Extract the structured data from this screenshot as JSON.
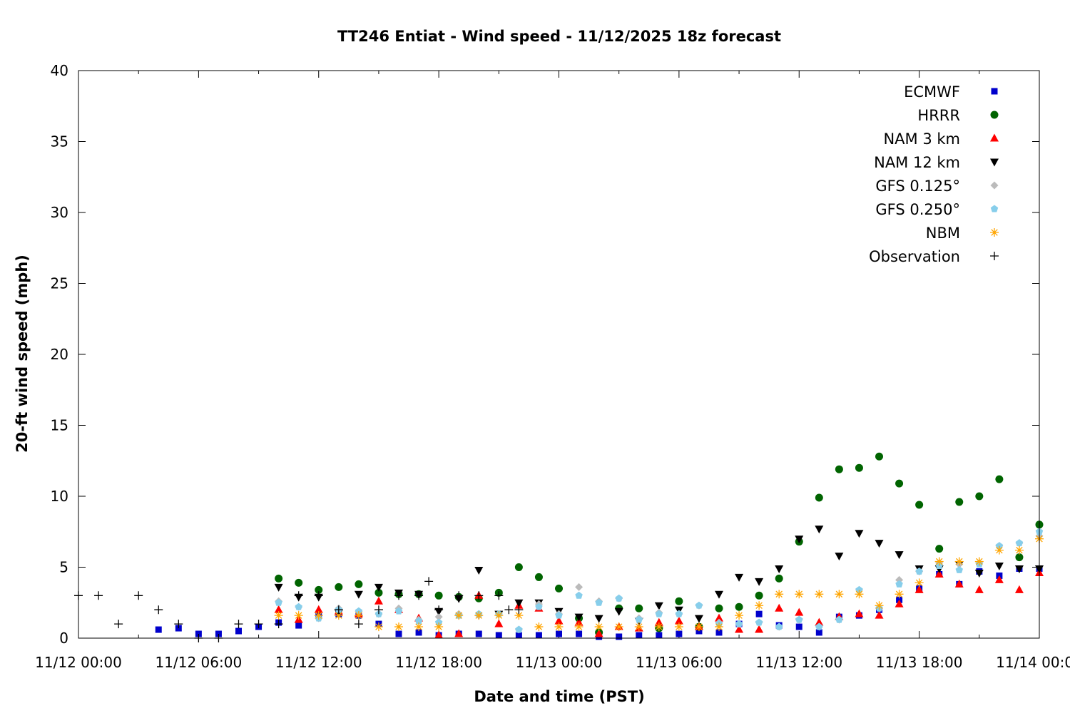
{
  "chart_data": {
    "type": "scatter",
    "title": "TT246 Entiat - Wind speed - 11/12/2025 18z forecast",
    "xlabel": "Date and time (PST)",
    "ylabel": "20-ft wind speed (mph)",
    "x_unit": "hours",
    "xlim": [
      0,
      48
    ],
    "ylim": [
      0,
      40
    ],
    "x_ticks": [
      {
        "value": 0,
        "label": "11/12 00:00"
      },
      {
        "value": 6,
        "label": "11/12 06:00"
      },
      {
        "value": 12,
        "label": "11/12 12:00"
      },
      {
        "value": 18,
        "label": "11/12 18:00"
      },
      {
        "value": 24,
        "label": "11/13 00:00"
      },
      {
        "value": 30,
        "label": "11/13 06:00"
      },
      {
        "value": 36,
        "label": "11/13 12:00"
      },
      {
        "value": 42,
        "label": "11/13 18:00"
      },
      {
        "value": 48,
        "label": "11/14 00:00"
      }
    ],
    "y_ticks": [
      0,
      5,
      10,
      15,
      20,
      25,
      30,
      35,
      40
    ],
    "grid": false,
    "legend_position": "top-right",
    "series": [
      {
        "name": "ECMWF",
        "marker": "square",
        "color": "#0000cc",
        "x": [
          4,
          5,
          6,
          7,
          8,
          9,
          10,
          11,
          12,
          13,
          14,
          15,
          16,
          17,
          18,
          19,
          20,
          21,
          22,
          23,
          24,
          25,
          26,
          27,
          28,
          29,
          30,
          31,
          32,
          33,
          34,
          35,
          36,
          37,
          38,
          39,
          40,
          41,
          42,
          43,
          44,
          45,
          46,
          47,
          48
        ],
        "y": [
          0.6,
          0.7,
          0.3,
          0.3,
          0.5,
          0.8,
          1.1,
          0.9,
          1.7,
          1.7,
          1.6,
          1.0,
          0.3,
          0.4,
          0.2,
          0.3,
          0.3,
          0.2,
          0.2,
          0.2,
          0.3,
          0.3,
          0.1,
          0.1,
          0.2,
          0.2,
          0.3,
          0.5,
          0.4,
          1.0,
          1.7,
          0.9,
          0.8,
          0.4,
          1.5,
          1.6,
          2.0,
          2.7,
          3.5,
          4.5,
          3.8,
          4.7,
          4.4,
          4.9,
          4.9
        ]
      },
      {
        "name": "HRRR",
        "marker": "circle",
        "color": "#006400",
        "x": [
          10,
          11,
          12,
          13,
          14,
          15,
          16,
          17,
          18,
          19,
          20,
          21,
          22,
          23,
          24,
          25,
          26,
          27,
          28,
          29,
          30,
          31,
          32,
          33,
          34,
          35,
          36,
          37,
          38,
          39,
          40,
          41,
          42,
          43,
          44,
          45,
          46,
          47,
          48
        ],
        "y": [
          4.2,
          3.9,
          3.4,
          3.6,
          3.8,
          3.2,
          3.1,
          3.1,
          3.0,
          2.9,
          2.8,
          3.2,
          5.0,
          4.3,
          3.5,
          1.4,
          0.4,
          2.1,
          2.1,
          0.7,
          2.6,
          0.8,
          2.1,
          2.2,
          3.0,
          4.2,
          6.8,
          9.9,
          11.9,
          12.0,
          12.8,
          10.9,
          9.4,
          6.3,
          9.6,
          10.0,
          11.2,
          5.7,
          8.0
        ]
      },
      {
        "name": "NAM 3 km",
        "marker": "triangle-up",
        "color": "#ff0000",
        "x": [
          10,
          11,
          12,
          13,
          14,
          15,
          16,
          17,
          18,
          19,
          20,
          21,
          22,
          23,
          24,
          25,
          26,
          27,
          28,
          29,
          30,
          31,
          32,
          33,
          34,
          35,
          36,
          37,
          38,
          39,
          40,
          41,
          42,
          43,
          44,
          45,
          46,
          47,
          48
        ],
        "y": [
          2.0,
          1.3,
          2.0,
          1.9,
          1.7,
          2.6,
          2.0,
          1.4,
          0.2,
          0.3,
          3.0,
          1.0,
          2.3,
          2.1,
          1.2,
          1.1,
          0.3,
          0.8,
          0.7,
          1.1,
          1.2,
          0.8,
          1.4,
          0.6,
          0.6,
          2.1,
          1.8,
          1.1,
          1.5,
          1.7,
          1.6,
          2.4,
          3.4,
          4.5,
          3.8,
          3.4,
          4.1,
          3.4,
          4.6
        ]
      },
      {
        "name": "NAM 12 km",
        "marker": "triangle-down",
        "color": "#000000",
        "x": [
          10,
          11,
          12,
          13,
          14,
          15,
          16,
          17,
          18,
          19,
          20,
          21,
          22,
          23,
          24,
          25,
          26,
          27,
          28,
          29,
          30,
          31,
          32,
          33,
          34,
          35,
          36,
          37,
          38,
          39,
          40,
          41,
          42,
          43,
          44,
          45,
          46,
          47,
          48
        ],
        "y": [
          3.6,
          2.9,
          2.9,
          1.8,
          3.1,
          3.6,
          3.2,
          3.1,
          1.9,
          2.8,
          4.8,
          1.7,
          2.5,
          2.5,
          1.9,
          1.5,
          1.4,
          1.9,
          1.2,
          2.3,
          2.0,
          1.4,
          3.1,
          4.3,
          4.0,
          4.9,
          7.0,
          7.7,
          5.8,
          7.4,
          6.7,
          5.9,
          4.9,
          4.9,
          5.2,
          4.6,
          5.1,
          4.9,
          4.9
        ]
      },
      {
        "name": "GFS 0.125°",
        "marker": "diamond",
        "color": "#bbbbbb",
        "x": [
          10,
          11,
          12,
          13,
          14,
          15,
          16,
          17,
          18,
          19,
          20,
          21,
          22,
          23,
          24,
          25,
          26,
          27,
          28,
          29,
          30,
          31,
          32,
          33,
          34,
          35,
          36,
          37,
          38,
          39,
          40,
          41,
          42,
          43,
          44,
          45,
          46,
          47,
          48
        ],
        "y": [
          2.6,
          2.2,
          1.4,
          2.1,
          1.9,
          1.7,
          2.1,
          1.3,
          1.5,
          1.7,
          1.6,
          1.7,
          0.6,
          2.4,
          1.7,
          3.6,
          2.6,
          2.8,
          1.4,
          1.8,
          1.7,
          2.3,
          1.1,
          1.0,
          1.1,
          0.8,
          1.3,
          0.8,
          1.3,
          3.4,
          2.1,
          4.1,
          4.7,
          5.3,
          5.2,
          5.3,
          6.5,
          6.7,
          7.2
        ]
      },
      {
        "name": "GFS 0.250°",
        "marker": "pentagon",
        "color": "#87ceeb",
        "x": [
          10,
          11,
          12,
          13,
          14,
          15,
          16,
          17,
          18,
          19,
          20,
          21,
          22,
          23,
          24,
          25,
          26,
          27,
          28,
          29,
          30,
          31,
          32,
          33,
          34,
          35,
          36,
          37,
          38,
          39,
          40,
          41,
          42,
          43,
          44,
          45,
          46,
          47,
          48
        ],
        "y": [
          2.5,
          2.2,
          1.4,
          2.0,
          1.9,
          1.7,
          1.9,
          1.2,
          1.1,
          1.6,
          1.7,
          1.7,
          0.6,
          2.2,
          1.6,
          3.0,
          2.5,
          2.8,
          1.3,
          1.7,
          1.7,
          2.3,
          1.0,
          1.0,
          1.1,
          0.8,
          1.3,
          0.8,
          1.3,
          3.4,
          2.1,
          3.8,
          4.7,
          5.1,
          4.8,
          5.2,
          6.5,
          6.7,
          7.5
        ]
      },
      {
        "name": "NBM",
        "marker": "asterisk",
        "color": "#ffa500",
        "x": [
          10,
          11,
          12,
          13,
          14,
          15,
          16,
          17,
          18,
          19,
          20,
          21,
          22,
          23,
          24,
          25,
          26,
          27,
          28,
          29,
          30,
          31,
          32,
          33,
          34,
          35,
          36,
          37,
          38,
          39,
          40,
          41,
          42,
          43,
          44,
          45,
          46,
          47,
          48
        ],
        "y": [
          1.6,
          1.6,
          1.6,
          1.6,
          1.6,
          0.8,
          0.8,
          0.8,
          0.8,
          1.6,
          1.6,
          1.6,
          1.6,
          0.8,
          0.8,
          0.8,
          0.8,
          0.8,
          0.8,
          0.8,
          0.8,
          0.8,
          0.8,
          1.6,
          2.3,
          3.1,
          3.1,
          3.1,
          3.1,
          3.1,
          2.3,
          3.1,
          3.9,
          5.4,
          5.4,
          5.4,
          6.2,
          6.2,
          7.0
        ]
      },
      {
        "name": "Observation",
        "marker": "plus",
        "color": "#000000",
        "x": [
          0,
          1,
          2,
          3,
          4,
          5,
          6,
          7,
          8,
          9,
          10,
          11,
          12,
          13,
          14,
          15,
          16,
          17,
          17.5,
          18,
          19,
          20,
          21,
          21.5,
          22
        ],
        "y": [
          3.0,
          3.0,
          1.0,
          3.0,
          2.0,
          1.0,
          0.0,
          0.0,
          1.0,
          1.0,
          1.0,
          3.0,
          3.0,
          2.0,
          1.0,
          2.0,
          3.0,
          3.0,
          4.0,
          2.0,
          3.0,
          3.0,
          3.0,
          2.0,
          2.0
        ]
      }
    ]
  }
}
